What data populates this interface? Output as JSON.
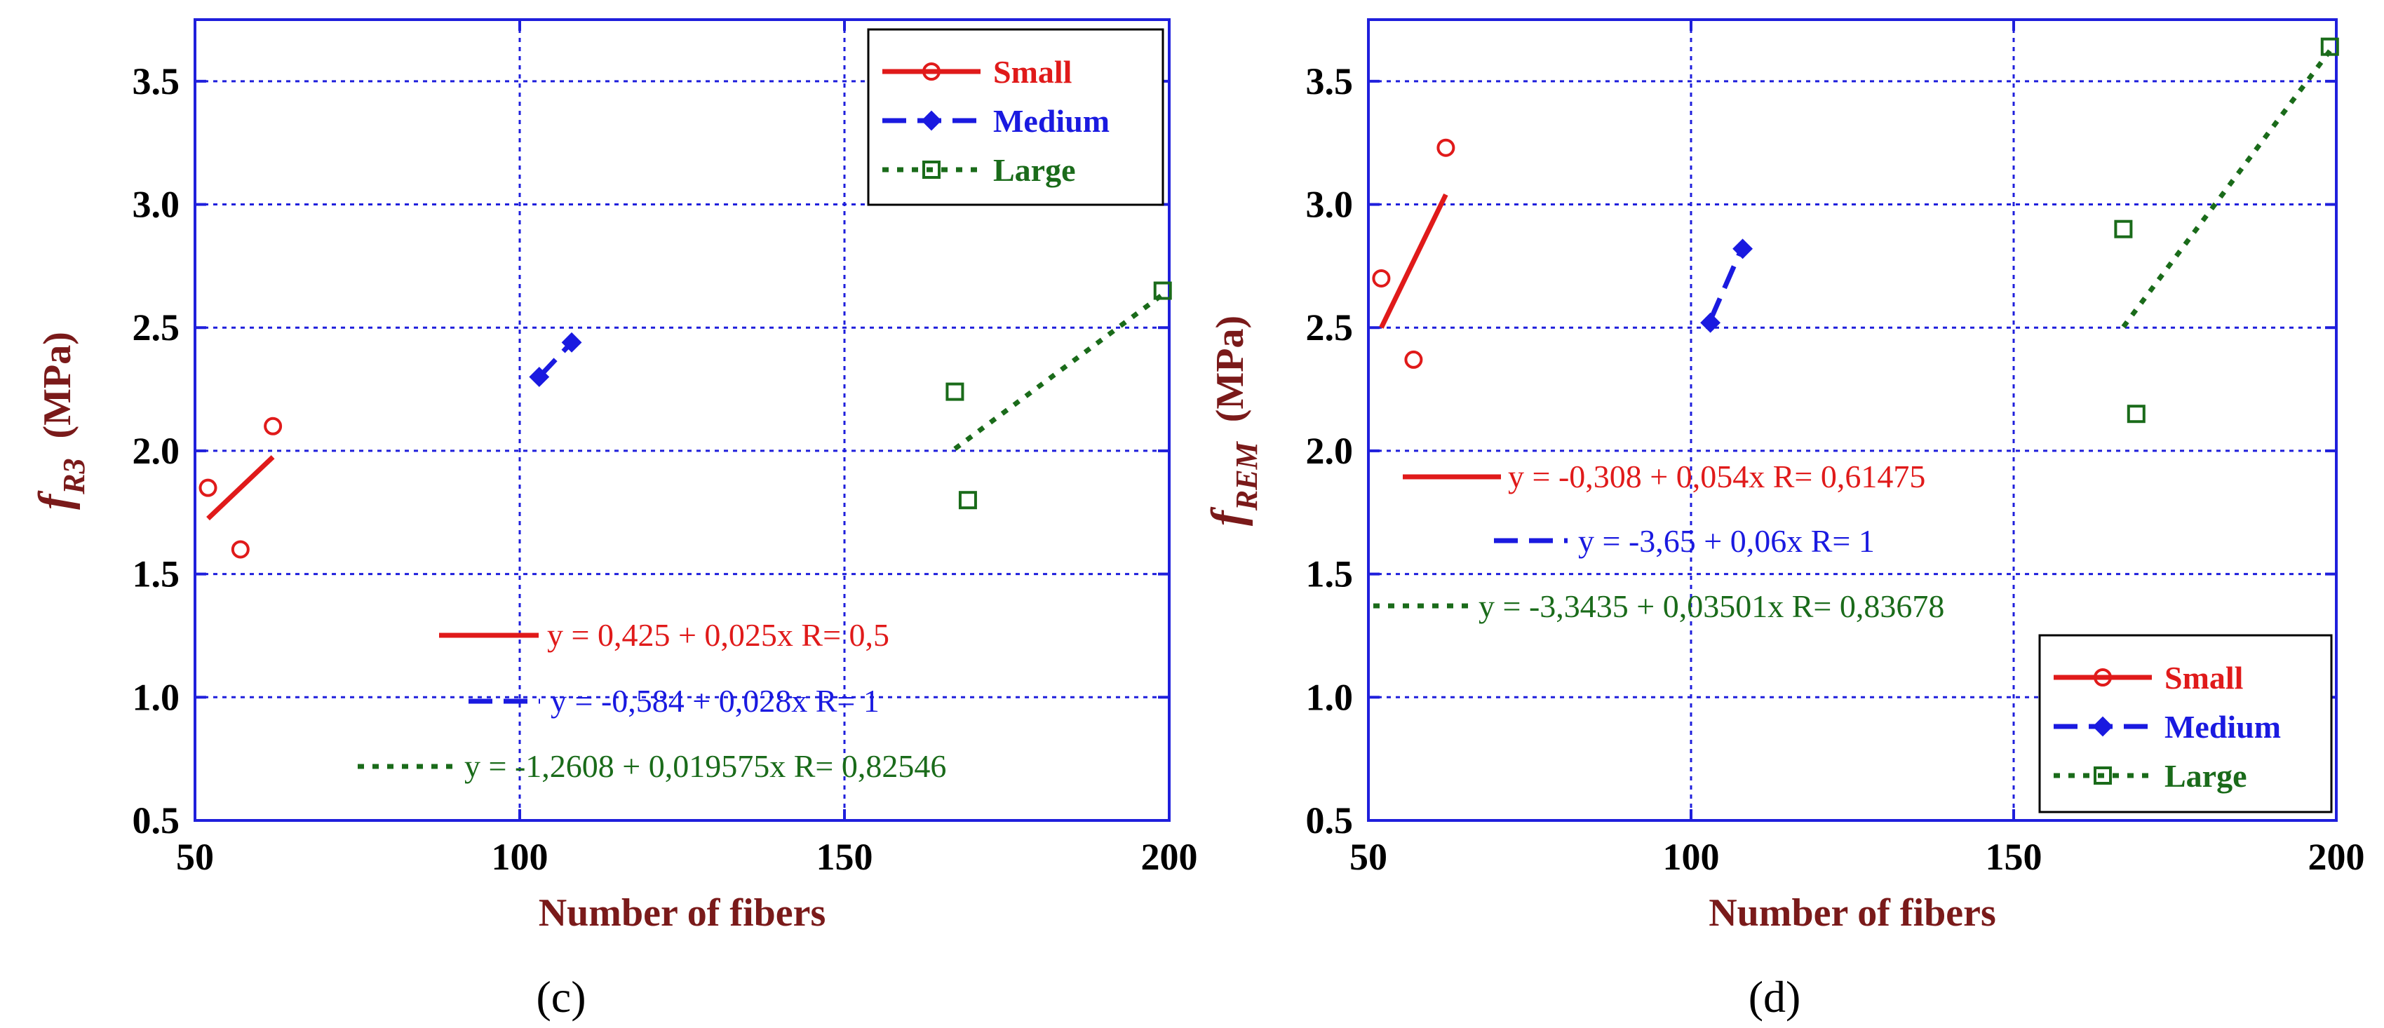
{
  "colors": {
    "axis": "#1f1fdc",
    "grid": "#1f1fdc",
    "label": "#7a1a1a",
    "small": "#e01a1a",
    "medium": "#1a1ae0",
    "large": "#1a6b1a"
  },
  "chart_data": [
    {
      "type": "scatter",
      "panel_label": "(c)",
      "xlabel": "Number of fibers",
      "ylabel_symbol": "f",
      "ylabel_subscript": "R3",
      "ylabel_unit": "(MPa)",
      "xlim": [
        50,
        200
      ],
      "ylim": [
        0.5,
        3.75
      ],
      "x_ticks": [
        "50",
        "100",
        "150",
        "200"
      ],
      "y_ticks": [
        "0.5",
        "1.0",
        "1.5",
        "2.0",
        "2.5",
        "3.0",
        "3.5"
      ],
      "grid": true,
      "legend_position": "top-right",
      "series": [
        {
          "name": "Small",
          "key": "small",
          "marker": "circle",
          "line": "solid",
          "points": [
            [
              52,
              1.85
            ],
            [
              57,
              1.6
            ],
            [
              62,
              2.1
            ]
          ],
          "fit": {
            "x": [
              52,
              62
            ],
            "intercept": 0.425,
            "slope": 0.025
          },
          "equation": "y = 0,425 + 0,025x   R= 0,5"
        },
        {
          "name": "Medium",
          "key": "medium",
          "marker": "diamond",
          "line": "dashed",
          "points": [
            [
              103,
              2.3
            ],
            [
              108,
              2.44
            ]
          ],
          "fit": {
            "x": [
              103,
              108
            ],
            "intercept": -0.584,
            "slope": 0.028
          },
          "equation": "y = -0,584 + 0,028x   R= 1"
        },
        {
          "name": "Large",
          "key": "large",
          "marker": "square",
          "line": "dotted",
          "points": [
            [
              167,
              2.24
            ],
            [
              169,
              1.8
            ],
            [
              199,
              2.65
            ]
          ],
          "fit": {
            "x": [
              167,
              199
            ],
            "intercept": -1.2608,
            "slope": 0.019575
          },
          "equation": "y = -1,2608 + 0,019575x   R= 0,82546"
        }
      ]
    },
    {
      "type": "scatter",
      "panel_label": "(d)",
      "xlabel": "Number of fibers",
      "ylabel_symbol": "f",
      "ylabel_subscript": "REM",
      "ylabel_unit": "(MPa)",
      "xlim": [
        50,
        200
      ],
      "ylim": [
        0.5,
        3.75
      ],
      "x_ticks": [
        "50",
        "100",
        "150",
        "200"
      ],
      "y_ticks": [
        "0.5",
        "1.0",
        "1.5",
        "2.0",
        "2.5",
        "3.0",
        "3.5"
      ],
      "grid": true,
      "legend_position": "bottom-right",
      "series": [
        {
          "name": "Small",
          "key": "small",
          "marker": "circle",
          "line": "solid",
          "points": [
            [
              52,
              2.7
            ],
            [
              57,
              2.37
            ],
            [
              62,
              3.23
            ]
          ],
          "fit": {
            "x": [
              52,
              62
            ],
            "intercept": -0.308,
            "slope": 0.054
          },
          "equation": "y = -0,308 + 0,054x   R= 0,61475"
        },
        {
          "name": "Medium",
          "key": "medium",
          "marker": "diamond",
          "line": "dashed",
          "points": [
            [
              103,
              2.52
            ],
            [
              108,
              2.82
            ]
          ],
          "fit": {
            "x": [
              103,
              108
            ],
            "intercept": -3.65,
            "slope": 0.06
          },
          "equation": "y = -3,65 + 0,06x   R= 1"
        },
        {
          "name": "Large",
          "key": "large",
          "marker": "square",
          "line": "dotted",
          "points": [
            [
              167,
              2.9
            ],
            [
              169,
              2.15
            ],
            [
              199,
              3.64
            ]
          ],
          "fit": {
            "x": [
              167,
              199
            ],
            "intercept": -3.3435,
            "slope": 0.03501
          },
          "equation": "y = -3,3435 + 0,03501x   R= 0,83678"
        }
      ]
    }
  ]
}
